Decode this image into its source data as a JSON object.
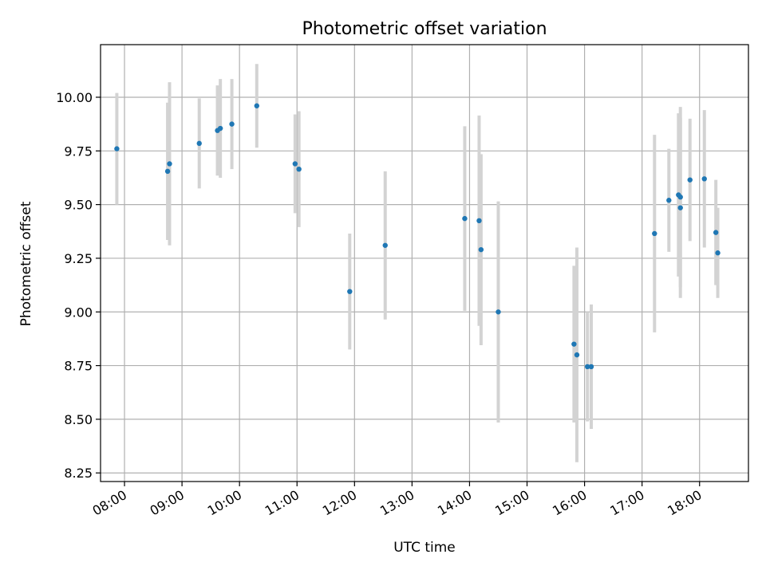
{
  "chart_data": {
    "type": "scatter",
    "title": "Photometric offset variation",
    "xlabel": "UTC time",
    "ylabel": "Photometric offset",
    "x_unit": "hours UTC",
    "xlim": [
      "07:35",
      "18:51"
    ],
    "ylim": [
      8.21,
      10.245
    ],
    "grid": true,
    "legend": "none",
    "x_ticks": [
      "08:00",
      "09:00",
      "10:00",
      "11:00",
      "12:00",
      "13:00",
      "14:00",
      "15:00",
      "16:00",
      "17:00",
      "18:00"
    ],
    "y_ticks": [
      "8.25",
      "8.50",
      "8.75",
      "9.00",
      "9.25",
      "9.50",
      "9.75",
      "10.00"
    ],
    "point_color": "#1f77b4",
    "errorbar_color": "#d3d3d3",
    "series": [
      {
        "points": [
          {
            "time": "07:52",
            "y": 9.76,
            "err": 0.26
          },
          {
            "time": "08:45",
            "y": 9.655,
            "err": 0.32
          },
          {
            "time": "08:47",
            "y": 9.69,
            "err": 0.38
          },
          {
            "time": "09:18",
            "y": 9.785,
            "err": 0.21
          },
          {
            "time": "09:37",
            "y": 9.845,
            "err": 0.21
          },
          {
            "time": "09:40",
            "y": 9.855,
            "err": 0.23
          },
          {
            "time": "09:52",
            "y": 9.875,
            "err": 0.21
          },
          {
            "time": "10:18",
            "y": 9.96,
            "err": 0.195
          },
          {
            "time": "10:58",
            "y": 9.69,
            "err": 0.23
          },
          {
            "time": "11:02",
            "y": 9.665,
            "err": 0.27
          },
          {
            "time": "11:55",
            "y": 9.095,
            "err": 0.27
          },
          {
            "time": "12:32",
            "y": 9.31,
            "err": 0.345
          },
          {
            "time": "13:55",
            "y": 9.435,
            "err": 0.43
          },
          {
            "time": "14:10",
            "y": 9.425,
            "err": 0.49
          },
          {
            "time": "14:12",
            "y": 9.29,
            "err": 0.445
          },
          {
            "time": "14:30",
            "y": 9.0,
            "err": 0.515
          },
          {
            "time": "15:49",
            "y": 8.85,
            "err": 0.365
          },
          {
            "time": "15:52",
            "y": 8.8,
            "err": 0.5
          },
          {
            "time": "16:03",
            "y": 8.745,
            "err": 0.255
          },
          {
            "time": "16:07",
            "y": 8.745,
            "err": 0.29
          },
          {
            "time": "17:13",
            "y": 9.365,
            "err": 0.46
          },
          {
            "time": "17:28",
            "y": 9.52,
            "err": 0.24
          },
          {
            "time": "17:38",
            "y": 9.545,
            "err": 0.38
          },
          {
            "time": "17:40",
            "y": 9.535,
            "err": 0.42
          },
          {
            "time": "17:40",
            "y": 9.485,
            "err": 0.42
          },
          {
            "time": "17:50",
            "y": 9.615,
            "err": 0.285
          },
          {
            "time": "18:05",
            "y": 9.62,
            "err": 0.32
          },
          {
            "time": "18:17",
            "y": 9.37,
            "err": 0.245
          },
          {
            "time": "18:19",
            "y": 9.275,
            "err": 0.21
          }
        ]
      }
    ]
  }
}
